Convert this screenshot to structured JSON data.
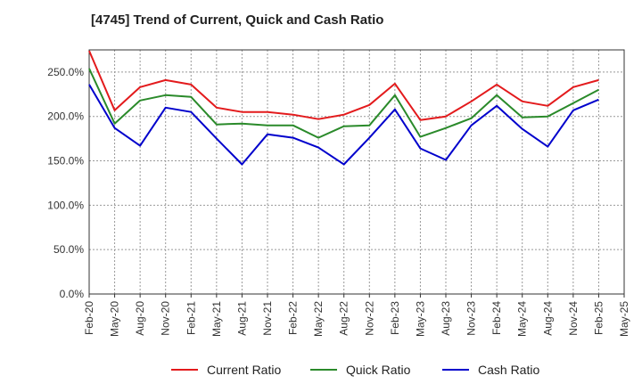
{
  "chart_data": {
    "type": "line",
    "title": "[4745]  Trend of Current, Quick and Cash Ratio",
    "xlabel": "",
    "ylabel": "",
    "ylim": [
      0,
      275
    ],
    "yticks": [
      0,
      50,
      100,
      150,
      200,
      250
    ],
    "ytick_labels": [
      "0.0%",
      "50.0%",
      "100.0%",
      "150.0%",
      "200.0%",
      "250.0%"
    ],
    "grid": true,
    "legend_position": "bottom",
    "categories": [
      "Feb-20",
      "May-20",
      "Aug-20",
      "Nov-20",
      "Feb-21",
      "May-21",
      "Aug-21",
      "Nov-21",
      "Feb-22",
      "May-22",
      "Aug-22",
      "Nov-22",
      "Feb-23",
      "May-23",
      "Aug-23",
      "Nov-23",
      "Feb-24",
      "May-24",
      "Aug-24",
      "Nov-24",
      "Feb-25",
      "May-25"
    ],
    "series": [
      {
        "name": "Current Ratio",
        "color": "#e31a1c",
        "values": [
          274,
          207,
          233,
          241,
          236,
          210,
          205,
          205,
          202,
          197,
          202,
          213,
          237,
          196,
          200,
          217,
          236,
          217,
          212,
          233,
          241,
          null
        ]
      },
      {
        "name": "Quick Ratio",
        "color": "#2a8a2a",
        "values": [
          254,
          192,
          218,
          224,
          222,
          191,
          192,
          190,
          190,
          176,
          189,
          190,
          224,
          177,
          187,
          198,
          224,
          199,
          200,
          215,
          230,
          null
        ]
      },
      {
        "name": "Cash Ratio",
        "color": "#0000cc",
        "values": [
          236,
          187,
          167,
          210,
          205,
          175,
          146,
          180,
          176,
          165,
          146,
          176,
          208,
          164,
          151,
          190,
          212,
          186,
          166,
          207,
          219,
          null
        ]
      }
    ]
  }
}
